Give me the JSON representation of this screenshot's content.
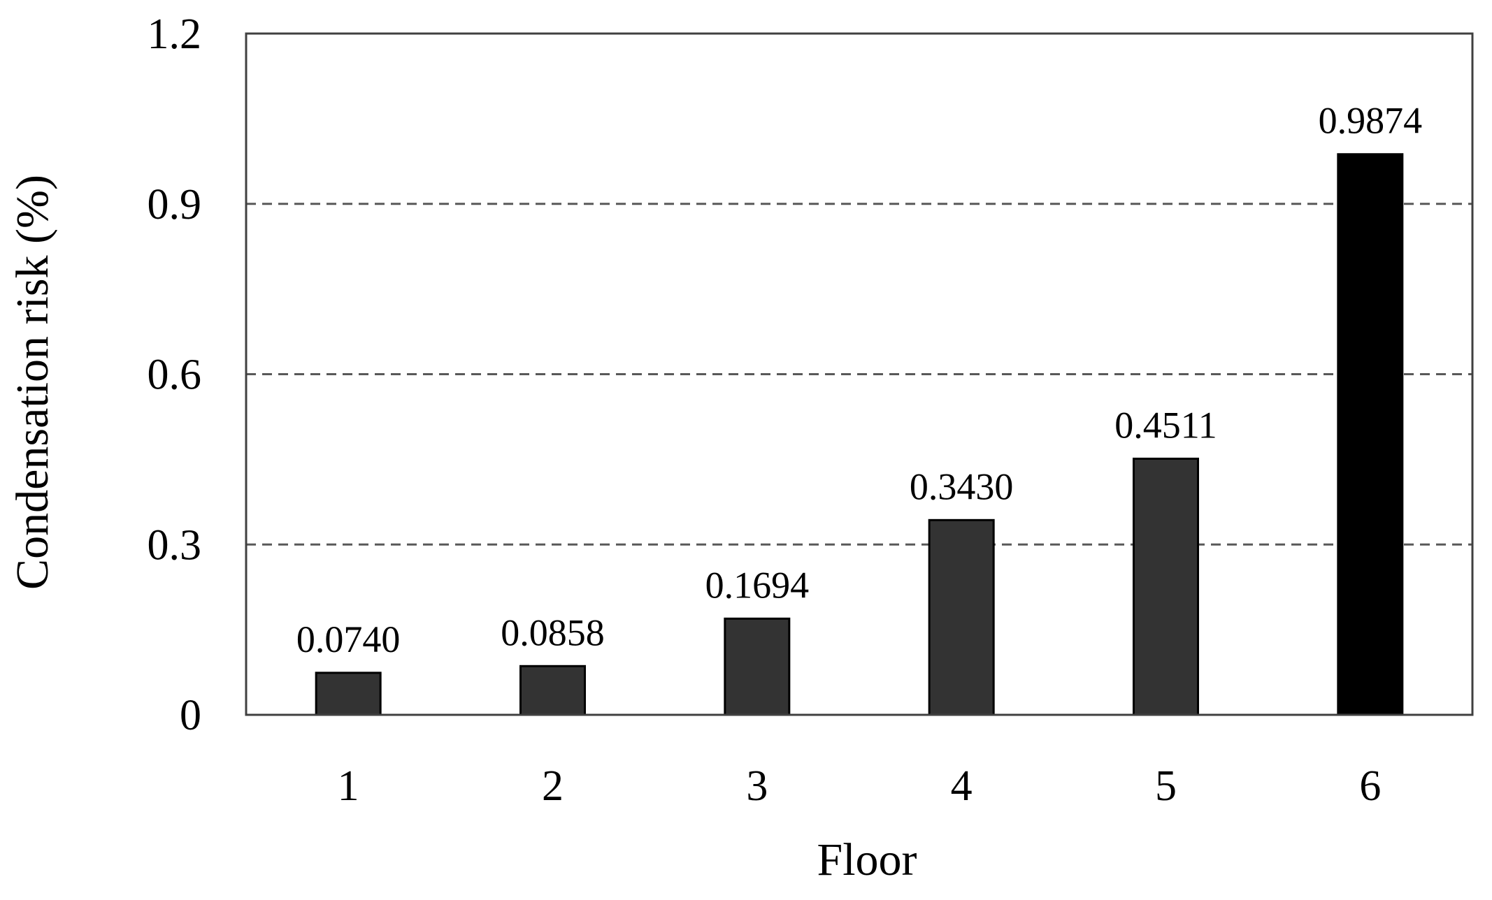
{
  "chart_data": {
    "type": "bar",
    "title": "",
    "xlabel": "Floor",
    "ylabel": "Condensation risk (%)",
    "categories": [
      "1",
      "2",
      "3",
      "4",
      "5",
      "6"
    ],
    "values": [
      0.074,
      0.0858,
      0.1694,
      0.343,
      0.4511,
      0.9874
    ],
    "data_labels": [
      "0.0740",
      "0.0858",
      "0.1694",
      "0.3430",
      "0.4511",
      "0.9874"
    ],
    "ylim": [
      0,
      1.2
    ],
    "yticks": [
      0,
      0.3,
      0.6,
      0.9,
      1.2
    ],
    "ytick_labels": [
      "0",
      "0.3",
      "0.6",
      "0.9",
      "1.2"
    ],
    "grid": "horizontal dashed",
    "legend": "none",
    "colors": {
      "bar": "#333333",
      "highlight_bar": "#000000",
      "axis": "#404040",
      "grid": "#595959"
    },
    "highlight_index": 5
  }
}
